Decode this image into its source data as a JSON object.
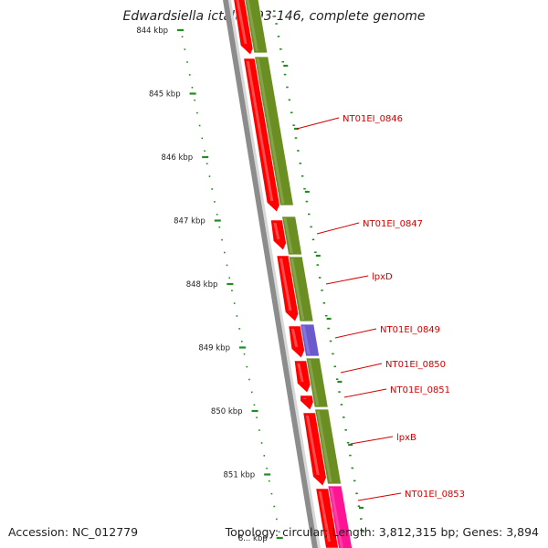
{
  "title": "Edwardsiella ictaluri 93-146, complete genome",
  "footer": {
    "accession": "Accession: NC_012779",
    "summary": "Topology: circular; Length: 3,812,315 bp; Genes: 3,894"
  },
  "colors": {
    "gene_forward": "#ff0000",
    "gene_olive": "#6b8e23",
    "gene_purple": "#6a5acd",
    "gene_pink": "#ff1493",
    "label": "#d40000",
    "tick": "#228b22",
    "backbone": "#808080"
  },
  "kbp_ticks": [
    {
      "label": "844 kbp"
    },
    {
      "label": "845 kbp"
    },
    {
      "label": "846 kbp"
    },
    {
      "label": "847 kbp"
    },
    {
      "label": "848 kbp"
    },
    {
      "label": "849 kbp"
    },
    {
      "label": "850 kbp"
    },
    {
      "label": "851 kbp"
    },
    {
      "label": "8... kbp"
    }
  ],
  "gene_labels": [
    {
      "label": "NT01EI_0846"
    },
    {
      "label": "NT01EI_0847"
    },
    {
      "label": "lpxD"
    },
    {
      "label": "NT01EI_0849"
    },
    {
      "label": "NT01EI_0850"
    },
    {
      "label": "NT01EI_0851"
    },
    {
      "label": "lpxB"
    },
    {
      "label": "NT01EI_0853"
    }
  ]
}
